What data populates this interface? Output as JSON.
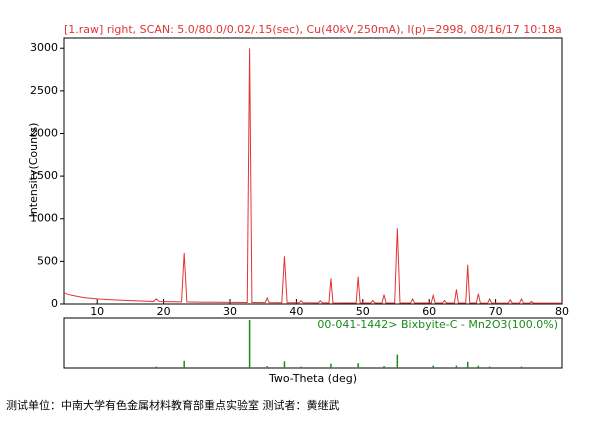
{
  "chart_data": [
    {
      "type": "line",
      "title": "[1.raw] right, SCAN: 5.0/80.0/0.02/.15(sec), Cu(40kV,250mA), I(p)=2998, 08/16/17 10:18a",
      "x_label": "Two-Theta (deg)",
      "y_label": "Intensity(Counts)",
      "color": "#e03535",
      "xlim": [
        5,
        80
      ],
      "xticks": [
        10,
        20,
        30,
        40,
        50,
        60,
        70,
        80
      ],
      "ylim": [
        0,
        3120
      ],
      "yticks": [
        0,
        500,
        1000,
        1500,
        2000,
        2500,
        3000
      ],
      "x": [
        5,
        5.5,
        6,
        7,
        8,
        10,
        12,
        15,
        18.5,
        18.9,
        19.3,
        20,
        22.7,
        23.1,
        23.5,
        25,
        28,
        32.6,
        32.95,
        33.3,
        35.3,
        35.6,
        35.9,
        37.8,
        38.2,
        38.6,
        40.4,
        40.7,
        41,
        43.3,
        43.6,
        43.9,
        44.9,
        45.2,
        45.5,
        47,
        49,
        49.3,
        49.6,
        51.2,
        51.5,
        51.8,
        52.9,
        53.2,
        53.5,
        54.8,
        55.2,
        55.6,
        57.2,
        57.5,
        57.8,
        60.3,
        60.6,
        60.9,
        62,
        62.3,
        62.6,
        63.8,
        64.1,
        64.4,
        65.5,
        65.8,
        66.1,
        67.1,
        67.4,
        67.7,
        68.8,
        69.1,
        69.4,
        71.9,
        72.2,
        72.5,
        73.6,
        73.9,
        74.2,
        75.1,
        75.4,
        75.7,
        80
      ],
      "values": [
        130,
        115,
        105,
        90,
        75,
        60,
        50,
        40,
        30,
        60,
        30,
        28,
        25,
        600,
        25,
        22,
        20,
        18,
        2998,
        18,
        16,
        70,
        16,
        15,
        560,
        15,
        14,
        40,
        14,
        13,
        40,
        13,
        13,
        300,
        13,
        12,
        12,
        320,
        12,
        12,
        40,
        12,
        12,
        110,
        12,
        12,
        890,
        12,
        11,
        60,
        11,
        11,
        100,
        11,
        11,
        40,
        11,
        11,
        170,
        11,
        11,
        460,
        11,
        11,
        120,
        11,
        10,
        60,
        10,
        10,
        50,
        10,
        10,
        60,
        10,
        10,
        30,
        10,
        10
      ]
    },
    {
      "type": "stick",
      "label": "00-041-1442> Bixbyite-C - Mn2O3(100.0%)",
      "color": "#1a8a1a",
      "xlim": [
        5,
        80
      ],
      "ylim": [
        0,
        100
      ],
      "x": [
        18.9,
        23.1,
        32.95,
        35.6,
        38.2,
        40.7,
        45.2,
        49.3,
        53.2,
        55.2,
        60.6,
        64.1,
        65.8,
        67.4,
        69.1,
        73.9
      ],
      "values": [
        3,
        15,
        100,
        4,
        14,
        3,
        9,
        10,
        4,
        28,
        5,
        5,
        13,
        5,
        3,
        3
      ]
    }
  ],
  "footer": "测试单位：中南大学有色金属材料教育部重点实验室 测试者：黄继武"
}
